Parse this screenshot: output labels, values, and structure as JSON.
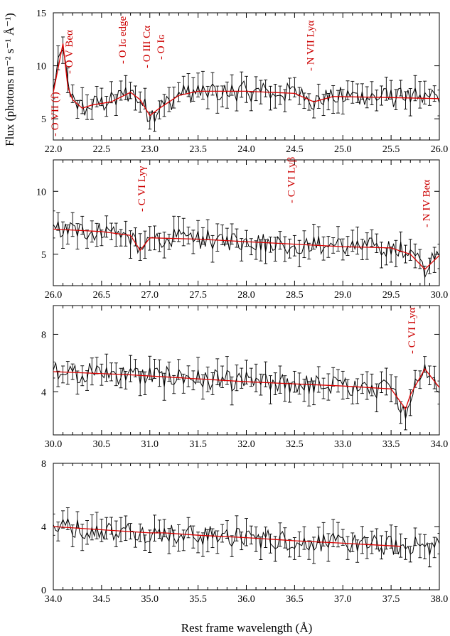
{
  "figure": {
    "ylabel": "Flux (photons m⁻² s⁻¹ Å⁻¹)",
    "xlabel": "Rest frame wavelength (Å)"
  },
  "colors": {
    "data": "#000000",
    "model": "#dd0000",
    "annotation": "#cc0000"
  },
  "chart_data": [
    {
      "type": "line",
      "xlim": [
        22.0,
        26.0
      ],
      "ylim": [
        3.0,
        15.0
      ],
      "xticks": [
        "22.0",
        "22.5",
        "23.0",
        "23.5",
        "24.0",
        "24.5",
        "25.0",
        "25.5",
        "26.0"
      ],
      "yticks": [
        "5",
        "10",
        "15"
      ],
      "series": [
        {
          "values": [
            [
              22.0,
              7.5
            ],
            [
              22.05,
              9.8
            ],
            [
              22.1,
              12.1
            ],
            [
              22.15,
              8.0
            ],
            [
              22.2,
              6.8
            ],
            [
              22.3,
              6.0
            ],
            [
              22.4,
              6.3
            ],
            [
              22.6,
              6.6
            ],
            [
              22.8,
              7.5
            ],
            [
              22.9,
              6.8
            ],
            [
              23.0,
              5.3
            ],
            [
              23.1,
              6.0
            ],
            [
              23.3,
              7.2
            ],
            [
              23.5,
              7.6
            ],
            [
              24.0,
              7.6
            ],
            [
              24.5,
              7.4
            ],
            [
              24.7,
              6.6
            ],
            [
              24.9,
              7.1
            ],
            [
              25.5,
              7.0
            ],
            [
              26.0,
              6.9
            ]
          ]
        }
      ],
      "annotations": [
        "O VII (f)",
        "O V Beα",
        "O Iɢ edge",
        "O III Cα",
        "O Iɢ",
        "N VII Lyα"
      ]
    },
    {
      "type": "line",
      "xlim": [
        26.0,
        30.0
      ],
      "ylim": [
        2.5,
        12.5
      ],
      "xticks": [
        "26.0",
        "26.5",
        "27.0",
        "27.5",
        "28.0",
        "28.5",
        "29.0",
        "29.5",
        "30.0"
      ],
      "yticks": [
        "5",
        "10"
      ],
      "series": [
        {
          "values": [
            [
              26.0,
              7.0
            ],
            [
              26.5,
              6.8
            ],
            [
              26.8,
              6.5
            ],
            [
              26.9,
              5.3
            ],
            [
              27.0,
              6.3
            ],
            [
              27.5,
              6.2
            ],
            [
              28.0,
              6.0
            ],
            [
              28.5,
              5.8
            ],
            [
              29.0,
              5.6
            ],
            [
              29.5,
              5.5
            ],
            [
              29.7,
              5.0
            ],
            [
              29.85,
              3.8
            ],
            [
              30.0,
              4.9
            ]
          ]
        }
      ],
      "annotations": [
        "C VI Lyγ",
        "C VI Lyβ",
        "N IV Beα"
      ]
    },
    {
      "type": "line",
      "xlim": [
        30.0,
        34.0
      ],
      "ylim": [
        1.0,
        10.0
      ],
      "xticks": [
        "30.0",
        "30.5",
        "31.0",
        "31.5",
        "32.0",
        "32.5",
        "33.0",
        "33.5",
        "34.0"
      ],
      "yticks": [
        "4",
        "8"
      ],
      "series": [
        {
          "values": [
            [
              30.0,
              5.4
            ],
            [
              30.75,
              5.2
            ],
            [
              31.5,
              4.9
            ],
            [
              32.0,
              4.7
            ],
            [
              33.0,
              4.4
            ],
            [
              33.5,
              4.2
            ],
            [
              33.65,
              2.8
            ],
            [
              33.7,
              3.8
            ],
            [
              33.85,
              5.6
            ],
            [
              34.0,
              4.3
            ]
          ]
        }
      ],
      "annotations": [
        "C VI Lyα"
      ]
    },
    {
      "type": "line",
      "xlim": [
        34.0,
        38.0
      ],
      "ylim": [
        0.0,
        8.0
      ],
      "xticks": [
        "34.0",
        "34.5",
        "35.0",
        "35.5",
        "36.0",
        "36.5",
        "37.0",
        "37.5",
        "38.0"
      ],
      "yticks": [
        "0",
        "4",
        "8"
      ],
      "series": [
        {
          "values": [
            [
              34.0,
              4.0
            ],
            [
              34.5,
              3.8
            ],
            [
              35.0,
              3.6
            ],
            [
              35.15,
              3.6
            ],
            [
              35.5,
              3.45
            ],
            [
              36.0,
              3.3
            ],
            [
              36.5,
              3.1
            ],
            [
              37.0,
              2.95
            ],
            [
              37.6,
              2.75
            ]
          ]
        }
      ],
      "annotations": []
    }
  ]
}
